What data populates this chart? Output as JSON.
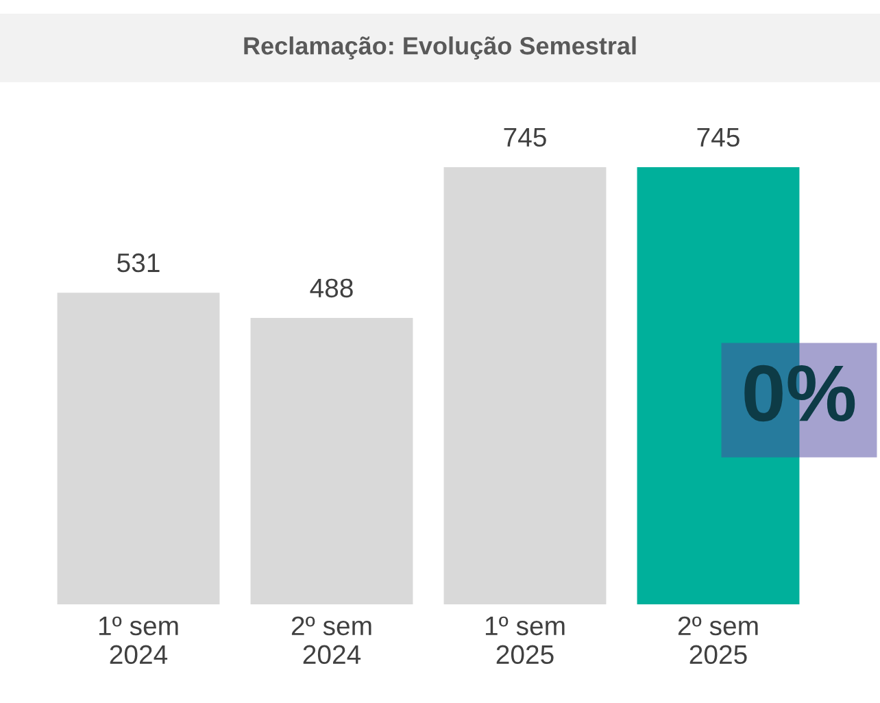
{
  "chart_data": {
    "type": "bar",
    "title": "Reclamação: Evolução Semestral",
    "categories": [
      "1º sem\n2024",
      "2º sem\n2024",
      "1º sem\n2025",
      "2º sem\n2025"
    ],
    "values": [
      531,
      488,
      745,
      745
    ],
    "colors": [
      "#d9d9d9",
      "#d9d9d9",
      "#d9d9d9",
      "#00b09b"
    ],
    "data_labels": true,
    "annotations": [
      "0%"
    ]
  }
}
